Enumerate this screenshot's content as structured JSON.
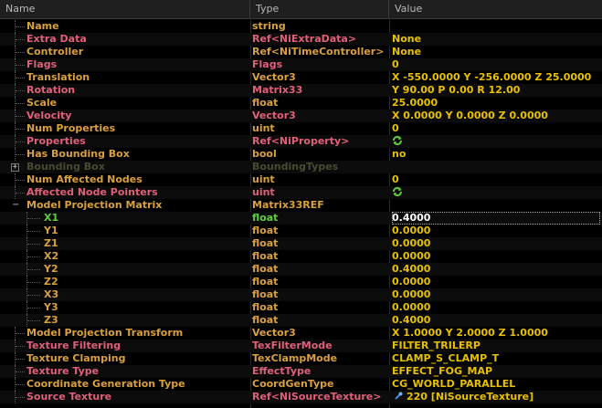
{
  "header": {
    "name": "Name",
    "type": "Type",
    "value": "Value"
  },
  "colors": {
    "name": "#d9a040",
    "name_dim": "#5a5a3a",
    "type": "#d9a040",
    "value": "#e8c000",
    "normal": "#e8c000",
    "ref": "#d9a040",
    "disabled": "#4a4a30",
    "pink": "#e0607a",
    "green": "#5dd038",
    "white": "#ffffff"
  },
  "rows": [
    {
      "name": "Name",
      "type": "string",
      "value": "",
      "style": "top"
    },
    {
      "name": "Extra Data",
      "type": "Ref<NiExtraData>",
      "value": "None",
      "style": "ref"
    },
    {
      "name": "Controller",
      "type": "Ref<NiTimeController>",
      "value": "None",
      "style": "normal"
    },
    {
      "name": "Flags",
      "type": "Flags",
      "value": "0",
      "style": "ref"
    },
    {
      "name": "Translation",
      "type": "Vector3",
      "value": "X -550.0000 Y -256.0000 Z 25.0000",
      "style": "normal"
    },
    {
      "name": "Rotation",
      "type": "Matrix33",
      "value": "Y 90.00 P 0.00 R 12.00",
      "style": "ref"
    },
    {
      "name": "Scale",
      "type": "float",
      "value": "25.0000",
      "style": "normal"
    },
    {
      "name": "Velocity",
      "type": "Vector3",
      "value": "X 0.0000 Y 0.0000 Z 0.0000",
      "style": "ref"
    },
    {
      "name": "Num Properties",
      "type": "uint",
      "value": "0",
      "style": "normal"
    },
    {
      "name": "Properties",
      "type": "Ref<NiProperty>",
      "value": "",
      "style": "ref",
      "icon": "refresh-icon"
    },
    {
      "name": "Has Bounding Box",
      "type": "bool",
      "value": "no",
      "style": "normal"
    },
    {
      "name": "Bounding Box",
      "type": "BoundingTypes",
      "value": "",
      "style": "disabled",
      "expander": "+"
    },
    {
      "name": "Num Affected Nodes",
      "type": "uint",
      "value": "0",
      "style": "normal"
    },
    {
      "name": "Affected Node Pointers",
      "type": "uint",
      "value": "",
      "style": "ref",
      "icon": "refresh-icon"
    },
    {
      "name": "Model Projection Matrix",
      "type": "Matrix33REF",
      "value": "",
      "style": "normal",
      "collapse": "−"
    },
    {
      "name": "X1",
      "type": "float",
      "value": "0.4000",
      "style": "selected",
      "child": true
    },
    {
      "name": "Y1",
      "type": "float",
      "value": "0.0000",
      "style": "normal",
      "child": true
    },
    {
      "name": "Z1",
      "type": "float",
      "value": "0.0000",
      "style": "normal",
      "child": true
    },
    {
      "name": "X2",
      "type": "float",
      "value": "0.0000",
      "style": "normal",
      "child": true
    },
    {
      "name": "Y2",
      "type": "float",
      "value": "0.4000",
      "style": "normal",
      "child": true
    },
    {
      "name": "Z2",
      "type": "float",
      "value": "0.0000",
      "style": "normal",
      "child": true
    },
    {
      "name": "X3",
      "type": "float",
      "value": "0.0000",
      "style": "normal",
      "child": true
    },
    {
      "name": "Y3",
      "type": "float",
      "value": "0.0000",
      "style": "normal",
      "child": true
    },
    {
      "name": "Z3",
      "type": "float",
      "value": "0.4000",
      "style": "normal",
      "child": true
    },
    {
      "name": "Model Projection Transform",
      "type": "Vector3",
      "value": "X 1.0000 Y 2.0000 Z 1.0000",
      "style": "normal"
    },
    {
      "name": "Texture Filtering",
      "type": "TexFilterMode",
      "value": "FILTER_TRILERP",
      "style": "ref"
    },
    {
      "name": "Texture Clamping",
      "type": "TexClampMode",
      "value": "CLAMP_S_CLAMP_T",
      "style": "normal"
    },
    {
      "name": "Texture Type",
      "type": "EffectType",
      "value": "EFFECT_FOG_MAP",
      "style": "ref"
    },
    {
      "name": "Coordinate Generation Type",
      "type": "CoordGenType",
      "value": "CG_WORLD_PARALLEL",
      "style": "normal"
    },
    {
      "name": "Source Texture",
      "type": "Ref<NiSourceTexture>",
      "value": "220 [NiSourceTexture]",
      "style": "ref",
      "icon": "source-texture-icon"
    }
  ]
}
